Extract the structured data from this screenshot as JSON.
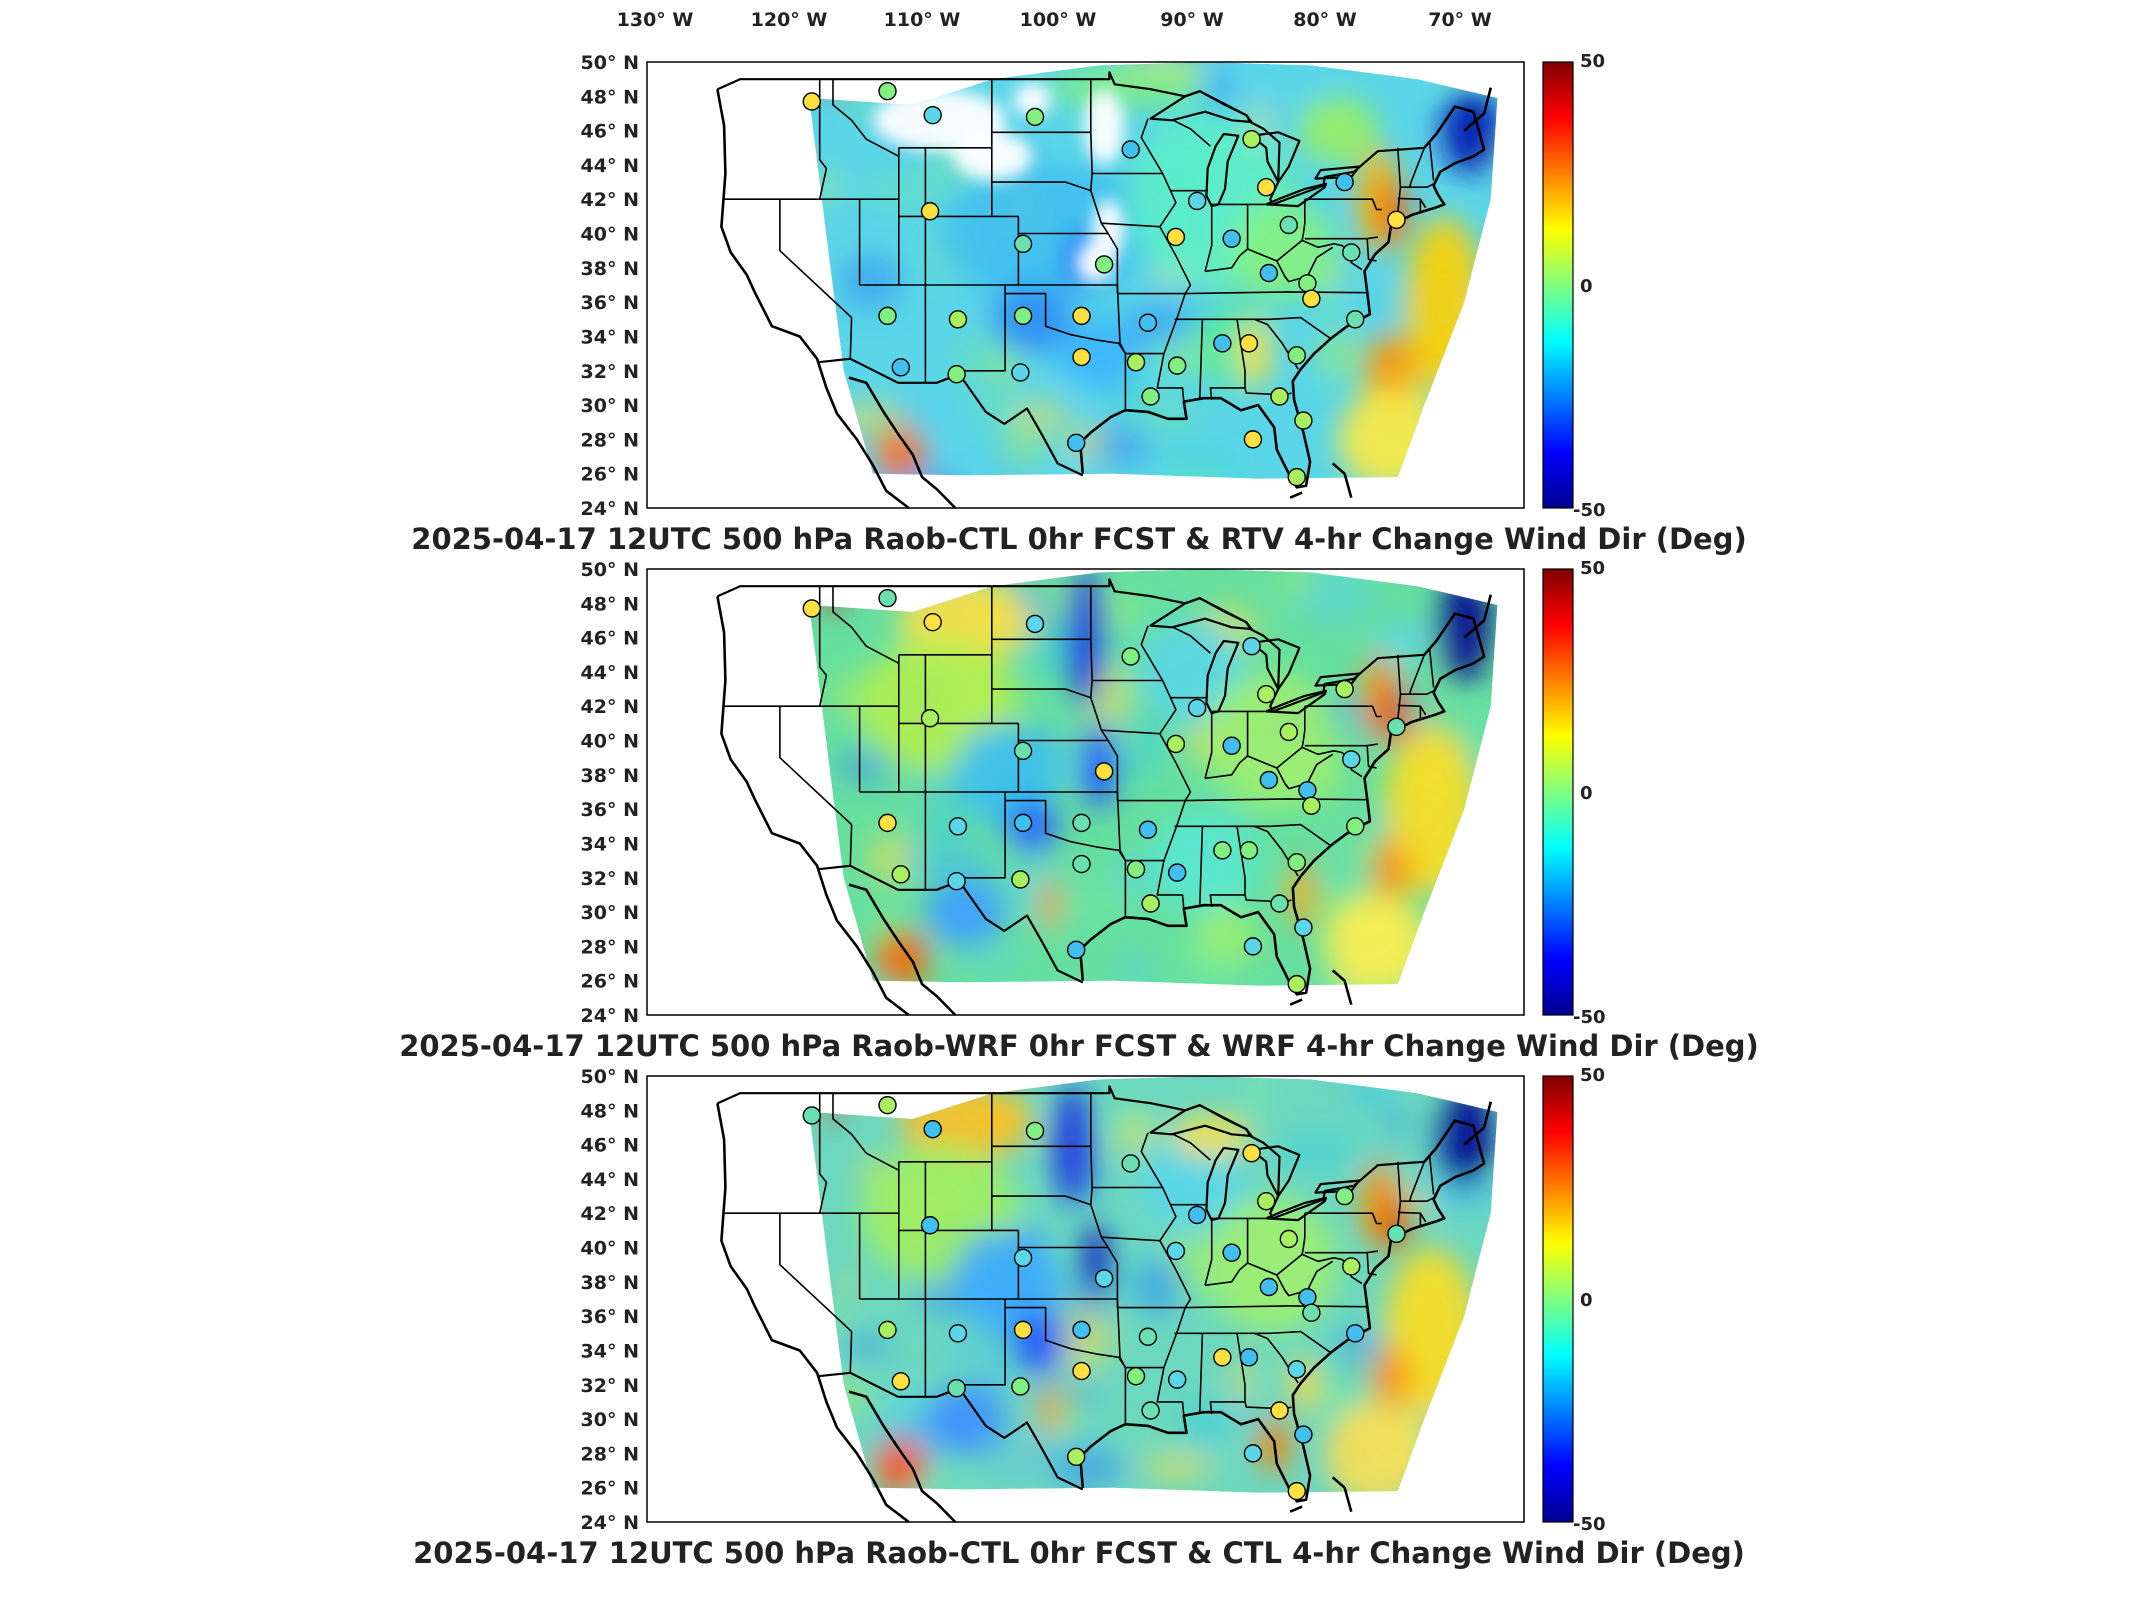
{
  "figure": {
    "lon_labels": [
      "130° W",
      "120° W",
      "110° W",
      "100° W",
      "90° W",
      "80° W",
      "70° W"
    ],
    "lat_labels": [
      "50° N",
      "48° N",
      "46° N",
      "44° N",
      "42° N",
      "40° N",
      "38° N",
      "36° N",
      "34° N",
      "32° N",
      "30° N",
      "28° N",
      "26° N",
      "24° N"
    ],
    "colorbar": {
      "max_label": "50",
      "mid_label": "0",
      "min_label": "-50",
      "range": [
        -50,
        50
      ],
      "colors": [
        "#00008f",
        "#0000ff",
        "#00ffff",
        "#80ff80",
        "#ffff00",
        "#ff8000",
        "#ff0000",
        "#800000"
      ]
    },
    "panels": [
      {
        "title": "2025-04-17 12UTC 500 hPa Raob-CTL 0hr FCST & RTV 4-hr Change Wind Dir (Deg)"
      },
      {
        "title": "2025-04-17 12UTC 500 hPa Raob-WRF 0hr FCST & WRF 4-hr Change Wind Dir (Deg)"
      },
      {
        "title": "2025-04-17 12UTC 500 hPa Raob-CTL 0hr FCST & CTL 4-hr Change Wind Dir (Deg)"
      }
    ],
    "stations": [
      [
        -117.6,
        47.7
      ],
      [
        -111.9,
        48.3
      ],
      [
        -108.5,
        46.9
      ],
      [
        -100.8,
        46.8
      ],
      [
        -93.6,
        44.9
      ],
      [
        -84.5,
        45.5
      ],
      [
        -88.6,
        41.9
      ],
      [
        -83.4,
        42.7
      ],
      [
        -77.5,
        43.0
      ],
      [
        -73.6,
        40.8
      ],
      [
        -108.7,
        41.3
      ],
      [
        -101.7,
        39.4
      ],
      [
        -95.6,
        38.2
      ],
      [
        -90.2,
        39.8
      ],
      [
        -86.0,
        39.7
      ],
      [
        -81.7,
        40.5
      ],
      [
        -83.2,
        37.7
      ],
      [
        -80.3,
        37.1
      ],
      [
        -77.0,
        38.9
      ],
      [
        -80.0,
        36.2
      ],
      [
        -76.7,
        35.0
      ],
      [
        -111.9,
        35.2
      ],
      [
        -106.6,
        35.0
      ],
      [
        -101.7,
        35.2
      ],
      [
        -97.3,
        35.2
      ],
      [
        -92.3,
        34.8
      ],
      [
        -86.7,
        33.6
      ],
      [
        -84.7,
        33.6
      ],
      [
        -81.1,
        32.9
      ],
      [
        -110.9,
        32.2
      ],
      [
        -106.7,
        31.8
      ],
      [
        -101.9,
        31.9
      ],
      [
        -97.3,
        32.8
      ],
      [
        -93.2,
        32.5
      ],
      [
        -90.1,
        32.3
      ],
      [
        -92.1,
        30.5
      ],
      [
        -97.7,
        27.8
      ],
      [
        -82.4,
        30.5
      ],
      [
        -84.4,
        28.0
      ],
      [
        -80.6,
        29.1
      ],
      [
        -81.1,
        25.8
      ]
    ]
  }
}
